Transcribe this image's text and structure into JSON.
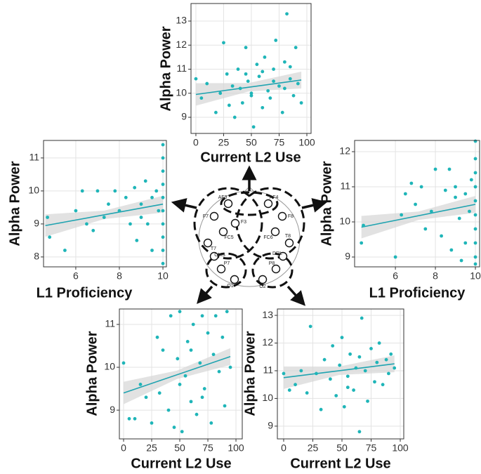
{
  "chart_data": [
    {
      "type": "scatter",
      "x_label": "Current L2 Use",
      "y_label": "Alpha Power",
      "color": "#1fb5b8",
      "trend_color": "#1fa3b0",
      "grid": true,
      "xlim": [
        -4.4,
        103.8
      ],
      "ylim": [
        8.33,
        13.73
      ],
      "xticks": [
        0,
        25,
        50,
        75,
        100
      ],
      "yticks": [
        9,
        10,
        11,
        12,
        13
      ],
      "x": [
        0,
        5,
        10,
        18,
        22,
        25,
        28,
        30,
        33,
        35,
        38,
        40,
        42,
        45,
        47,
        50,
        52,
        55,
        57,
        60,
        62,
        65,
        67,
        70,
        72,
        75,
        78,
        80,
        82,
        85,
        88,
        90,
        92,
        95,
        60,
        70,
        50,
        45,
        80,
        85
      ],
      "values": [
        10.6,
        9.8,
        10.4,
        9.2,
        10.0,
        12.1,
        10.8,
        9.5,
        10.3,
        9.0,
        11.0,
        10.2,
        9.6,
        11.9,
        10.5,
        9.9,
        8.6,
        11.2,
        10.7,
        9.4,
        11.5,
        10.1,
        9.8,
        11.0,
        12.2,
        10.3,
        9.2,
        11.3,
        13.3,
        10.6,
        9.9,
        11.9,
        10.4,
        9.6,
        10.9,
        10.5,
        10.0,
        10.8,
        10.2,
        11.1
      ],
      "trend_x": [
        0,
        95
      ],
      "trend_y": [
        9.95,
        10.55
      ]
    },
    {
      "type": "scatter",
      "x_label": "L1 Proficiency",
      "y_label": "Alpha Power",
      "color": "#1fb5b8",
      "trend_color": "#1fa3b0",
      "grid": true,
      "xlim": [
        4.52,
        10.16
      ],
      "ylim": [
        7.7,
        11.53
      ],
      "xticks": [
        6,
        8,
        10
      ],
      "yticks": [
        8,
        9,
        10,
        11
      ],
      "x": [
        4.7,
        4.8,
        5.5,
        6.0,
        6.3,
        6.5,
        6.8,
        7.0,
        7.3,
        7.5,
        7.8,
        8.0,
        8.3,
        8.5,
        8.7,
        8.8,
        9.0,
        9.0,
        9.2,
        9.3,
        9.5,
        9.5,
        9.7,
        9.8,
        10,
        10,
        10,
        10,
        10,
        10,
        10,
        10,
        10,
        10
      ],
      "values": [
        9.2,
        8.6,
        8.2,
        9.4,
        10.0,
        9.0,
        8.8,
        10.0,
        9.2,
        9.6,
        10.0,
        9.4,
        9.8,
        9.0,
        10.1,
        8.5,
        9.6,
        9.2,
        10.3,
        9.0,
        9.8,
        8.2,
        10.0,
        9.4,
        11.4,
        11.0,
        10.6,
        10.2,
        9.8,
        9.4,
        9.0,
        8.6,
        8.2,
        7.8
      ],
      "trend_x": [
        4.6,
        10
      ],
      "trend_y": [
        8.95,
        9.6
      ]
    },
    {
      "type": "scatter",
      "x_label": "L1 Proficiency",
      "y_label": "Alpha Power",
      "color": "#1fb5b8",
      "trend_color": "#1fa3b0",
      "grid": true,
      "xlim": [
        3.96,
        10.21
      ],
      "ylim": [
        8.72,
        12.32
      ],
      "xticks": [
        6,
        8,
        10
      ],
      "yticks": [
        9,
        10,
        11,
        12
      ],
      "x": [
        4.3,
        4.4,
        6.0,
        6.3,
        6.5,
        6.8,
        7.0,
        7.3,
        7.5,
        7.8,
        8.0,
        8.3,
        8.5,
        8.7,
        8.8,
        9.0,
        9.0,
        9.2,
        9.3,
        9.5,
        9.5,
        9.7,
        9.8,
        10,
        10,
        10,
        10,
        10,
        10,
        10,
        10,
        10,
        10
      ],
      "values": [
        9.4,
        9.9,
        9.0,
        10.2,
        10.8,
        11.1,
        10.5,
        11.0,
        9.8,
        10.3,
        11.5,
        9.6,
        10.9,
        11.5,
        9.2,
        10.7,
        11.0,
        10.1,
        8.9,
        10.8,
        9.4,
        10.3,
        11.2,
        12.3,
        11.8,
        11.4,
        11.0,
        10.6,
        10.2,
        9.8,
        9.4,
        9.0,
        8.8
      ],
      "trend_x": [
        4.3,
        10
      ],
      "trend_y": [
        9.85,
        10.5
      ]
    },
    {
      "type": "scatter",
      "x_label": "Current L2 Use",
      "y_label": "Alpha Power",
      "color": "#1fb5b8",
      "trend_color": "#1fa3b0",
      "grid": true,
      "xlim": [
        -3.75,
        105.6
      ],
      "ylim": [
        8.33,
        11.36
      ],
      "xticks": [
        0,
        25,
        50,
        75,
        100
      ],
      "yticks": [
        9,
        10,
        11
      ],
      "x": [
        0,
        5,
        10,
        15,
        20,
        25,
        30,
        32,
        35,
        40,
        42,
        45,
        48,
        50,
        52,
        55,
        57,
        60,
        62,
        65,
        68,
        70,
        72,
        75,
        78,
        80,
        82,
        85,
        88,
        90,
        92,
        95,
        50,
        60,
        70
      ],
      "values": [
        10.1,
        8.8,
        8.8,
        9.6,
        9.3,
        8.7,
        10.7,
        9.4,
        10.4,
        9.0,
        11.2,
        8.6,
        10.2,
        11.3,
        8.5,
        9.8,
        10.6,
        9.2,
        11.0,
        8.9,
        10.1,
        11.2,
        9.5,
        10.8,
        8.7,
        10.3,
        11.2,
        9.9,
        10.7,
        9.1,
        11.3,
        10.0,
        9.6,
        10.4,
        9.3
      ],
      "trend_x": [
        0,
        95
      ],
      "trend_y": [
        9.4,
        10.25
      ]
    },
    {
      "type": "scatter",
      "x_label": "Current L2 Use",
      "y_label": "Alpha Power",
      "color": "#1fb5b8",
      "trend_color": "#1fa3b0",
      "grid": true,
      "xlim": [
        -5.4,
        103
      ],
      "ylim": [
        8.54,
        13.23
      ],
      "xticks": [
        0,
        25,
        50,
        75,
        100
      ],
      "yticks": [
        9,
        10,
        11,
        12,
        13
      ],
      "x": [
        0,
        5,
        10,
        15,
        20,
        23,
        28,
        32,
        35,
        40,
        42,
        45,
        48,
        50,
        52,
        55,
        57,
        60,
        62,
        65,
        67,
        70,
        72,
        75,
        78,
        80,
        82,
        85,
        88,
        90,
        92,
        95,
        55,
        65
      ],
      "values": [
        10.9,
        10.3,
        10.5,
        11.0,
        10.2,
        12.6,
        10.9,
        9.6,
        11.4,
        10.7,
        11.9,
        10.1,
        11.2,
        12.2,
        9.7,
        10.8,
        11.6,
        10.3,
        11.1,
        8.8,
        12.9,
        11.0,
        9.9,
        11.8,
        10.6,
        11.3,
        12.0,
        10.5,
        11.4,
        10.9,
        11.6,
        11.1,
        10.4,
        11.5
      ],
      "trend_x": [
        0,
        95
      ],
      "trend_y": [
        10.75,
        11.25
      ]
    }
  ],
  "diagram": {
    "electrodes": [
      "AF3",
      "AF4",
      "F7",
      "F3",
      "F8",
      "FC5",
      "FC6",
      "T7",
      "T8",
      "CMS",
      "DRL",
      "P7",
      "P8",
      "O1",
      "O2"
    ]
  }
}
